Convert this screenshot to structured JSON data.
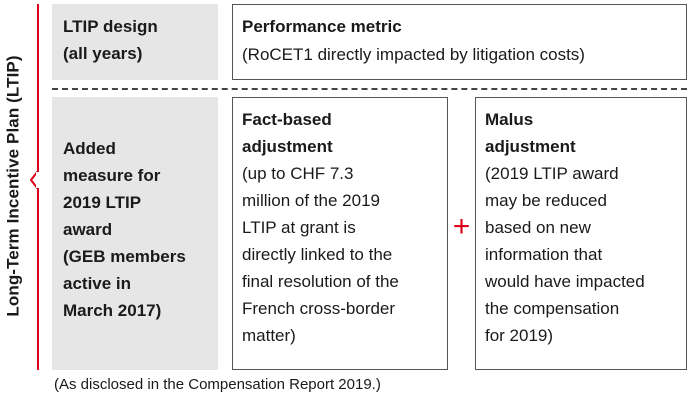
{
  "side_label": "Long-Term Incentive Plan (LTIP)",
  "colors": {
    "accent": "#e0001b",
    "panel_grey": "#e6e6e6",
    "border": "#555555"
  },
  "rows": {
    "design_label": "LTIP design\n(all years)",
    "added_label": "Added\nmeasure for\n2019 LTIP\naward\n(GEB members\nactive in\nMarch 2017)"
  },
  "performance_metric": {
    "title": "Performance metric",
    "body": "(RoCET1 directly impacted by litigation costs)"
  },
  "fact_based": {
    "title": "Fact-based\nadjustment",
    "body": "(up to CHF 7.3\nmillion of the 2019\nLTIP at grant is\ndirectly linked to the\nfinal resolution of the\nFrench cross-border\nmatter)"
  },
  "operator": "+",
  "malus": {
    "title": "Malus\nadjustment",
    "body": "(2019 LTIP award\nmay be reduced\nbased on new\ninformation that\nwould have impacted\nthe compensation\nfor 2019)"
  },
  "footnote": "(As disclosed in the Compensation Report 2019.)"
}
